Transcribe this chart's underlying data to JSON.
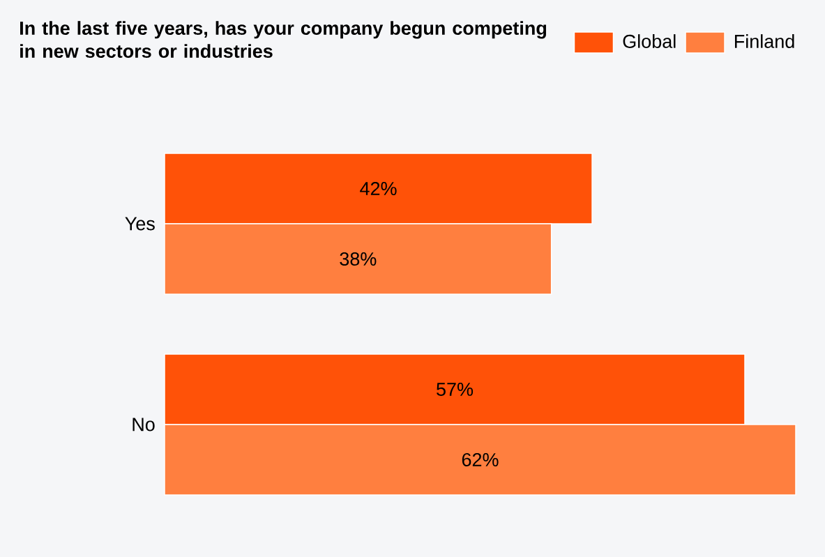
{
  "chart_data": {
    "type": "bar",
    "orientation": "horizontal",
    "title": "In the last five years, has your company begun competing in new sectors or industries",
    "categories": [
      "Yes",
      "No"
    ],
    "series": [
      {
        "name": "Global",
        "color": "#ff5208",
        "values": [
          42,
          57
        ],
        "value_labels": [
          "42%",
          "57%"
        ]
      },
      {
        "name": "Finland",
        "color": "#ff7f3f",
        "values": [
          38,
          62
        ],
        "value_labels": [
          "38%",
          "62%"
        ]
      }
    ],
    "legend": "top right"
  }
}
